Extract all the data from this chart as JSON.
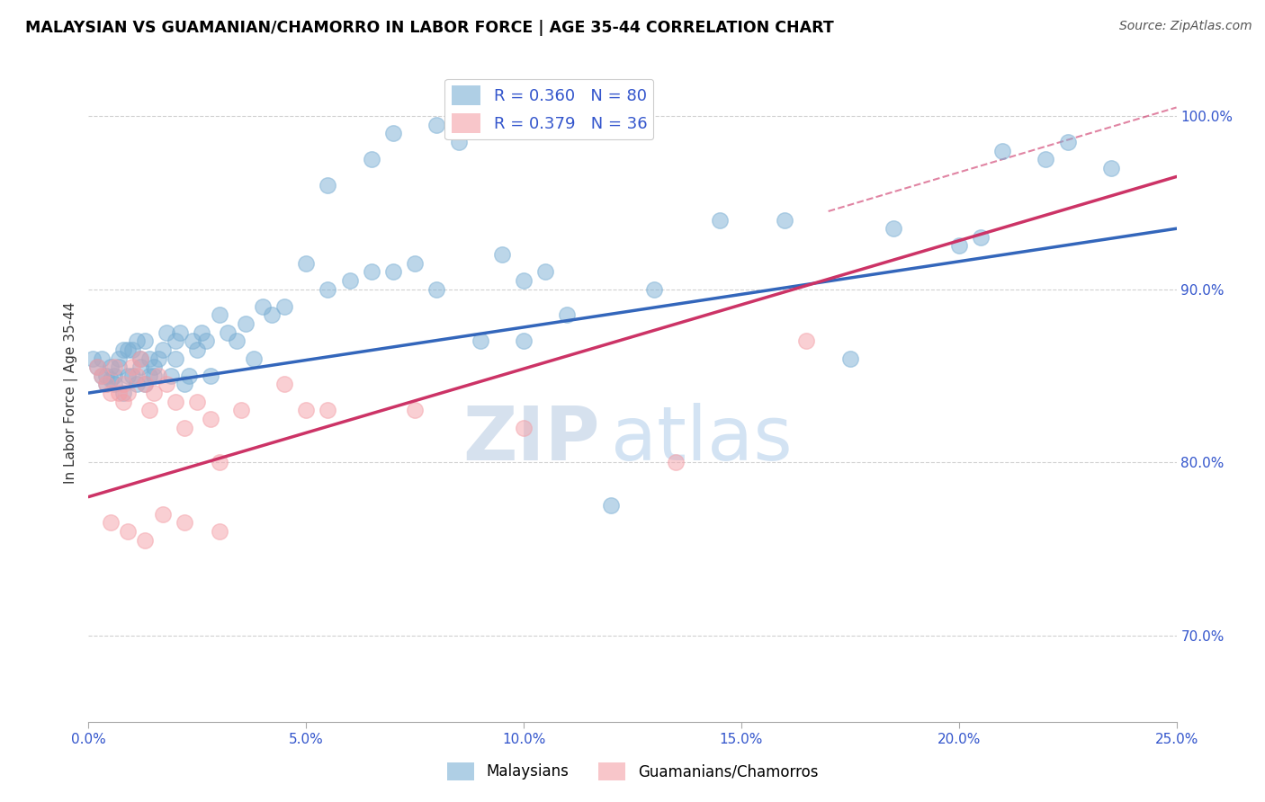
{
  "title": "MALAYSIAN VS GUAMANIAN/CHAMORRO IN LABOR FORCE | AGE 35-44 CORRELATION CHART",
  "source": "Source: ZipAtlas.com",
  "ylabel": "In Labor Force | Age 35-44",
  "legend_r1": "R = 0.360",
  "legend_n1": "N = 80",
  "legend_r2": "R = 0.379",
  "legend_n2": "N = 36",
  "blue_color": "#7BAFD4",
  "pink_color": "#F4A0A8",
  "blue_line_color": "#3366BB",
  "pink_line_color": "#CC3366",
  "watermark_zip": "ZIP",
  "watermark_atlas": "atlas",
  "xlim": [
    0.0,
    25.0
  ],
  "ylim": [
    65.0,
    103.0
  ],
  "ytick_vals": [
    70,
    80,
    90,
    100
  ],
  "xtick_vals": [
    0,
    5,
    10,
    15,
    20,
    25
  ],
  "blue_line_x": [
    0,
    25
  ],
  "blue_line_y": [
    84.0,
    93.5
  ],
  "pink_line_x": [
    0,
    25
  ],
  "pink_line_y": [
    78.0,
    96.5
  ],
  "dash_line_x": [
    17.0,
    25.0
  ],
  "dash_line_y": [
    94.5,
    100.5
  ],
  "mal_x": [
    0.1,
    0.2,
    0.3,
    0.3,
    0.4,
    0.4,
    0.5,
    0.5,
    0.6,
    0.6,
    0.7,
    0.7,
    0.8,
    0.8,
    0.9,
    0.9,
    1.0,
    1.0,
    1.1,
    1.1,
    1.2,
    1.2,
    1.3,
    1.3,
    1.4,
    1.4,
    1.5,
    1.5,
    1.6,
    1.7,
    1.8,
    1.9,
    2.0,
    2.0,
    2.1,
    2.2,
    2.3,
    2.4,
    2.5,
    2.6,
    2.7,
    2.8,
    3.0,
    3.2,
    3.4,
    3.6,
    3.8,
    4.0,
    4.2,
    4.5,
    5.0,
    5.5,
    6.0,
    6.5,
    7.0,
    7.5,
    8.0,
    9.0,
    9.5,
    10.0,
    10.5,
    11.0,
    12.0,
    13.0,
    14.5,
    16.0,
    17.5,
    18.5,
    20.0,
    20.5,
    21.0,
    22.0,
    22.5,
    23.5,
    10.0,
    5.5,
    6.5,
    7.0,
    8.5,
    8.0
  ],
  "mal_y": [
    86.0,
    85.5,
    85.0,
    86.0,
    85.0,
    84.5,
    85.5,
    84.8,
    84.5,
    85.0,
    85.5,
    86.0,
    86.5,
    84.0,
    85.0,
    86.5,
    85.0,
    86.5,
    87.0,
    84.5,
    85.5,
    86.0,
    87.0,
    84.5,
    85.0,
    86.0,
    85.5,
    85.0,
    86.0,
    86.5,
    87.5,
    85.0,
    86.0,
    87.0,
    87.5,
    84.5,
    85.0,
    87.0,
    86.5,
    87.5,
    87.0,
    85.0,
    88.5,
    87.5,
    87.0,
    88.0,
    86.0,
    89.0,
    88.5,
    89.0,
    91.5,
    90.0,
    90.5,
    91.0,
    91.0,
    91.5,
    90.0,
    87.0,
    92.0,
    90.5,
    91.0,
    88.5,
    77.5,
    90.0,
    94.0,
    94.0,
    86.0,
    93.5,
    92.5,
    93.0,
    98.0,
    97.5,
    98.5,
    97.0,
    87.0,
    96.0,
    97.5,
    99.0,
    98.5,
    99.5
  ],
  "gua_x": [
    0.2,
    0.3,
    0.4,
    0.5,
    0.6,
    0.7,
    0.8,
    0.8,
    0.9,
    1.0,
    1.1,
    1.2,
    1.3,
    1.4,
    1.5,
    1.6,
    1.8,
    2.0,
    2.2,
    2.5,
    2.8,
    3.5,
    4.5,
    5.5,
    7.5,
    10.0,
    13.5,
    16.5,
    3.0,
    5.0,
    0.5,
    0.9,
    1.3,
    1.7,
    2.2,
    3.0
  ],
  "gua_y": [
    85.5,
    85.0,
    84.5,
    84.0,
    85.5,
    84.0,
    83.5,
    84.5,
    84.0,
    85.5,
    85.0,
    86.0,
    84.5,
    83.0,
    84.0,
    85.0,
    84.5,
    83.5,
    82.0,
    83.5,
    82.5,
    83.0,
    84.5,
    83.0,
    83.0,
    82.0,
    80.0,
    87.0,
    80.0,
    83.0,
    76.5,
    76.0,
    75.5,
    77.0,
    76.5,
    76.0
  ]
}
